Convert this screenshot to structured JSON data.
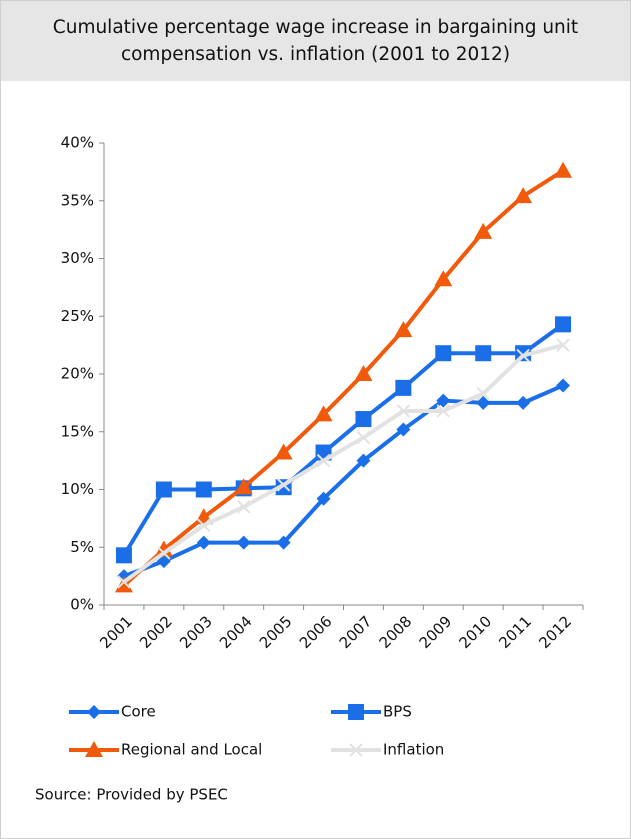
{
  "chart_data": {
    "type": "line",
    "title": "Cumulative percentage wage increase in bargaining unit compensation vs. inflation (2001 to 2012)",
    "categories": [
      "2001",
      "2002",
      "2003",
      "2004",
      "2005",
      "2006",
      "2007",
      "2008",
      "2009",
      "2010",
      "2011",
      "2012"
    ],
    "series": [
      {
        "name": "Core",
        "color": "#1a6fe8",
        "marker": "diamond",
        "values": [
          2.5,
          3.8,
          5.4,
          5.4,
          5.4,
          9.2,
          12.5,
          15.2,
          17.7,
          17.5,
          17.5,
          19.0
        ]
      },
      {
        "name": "BPS",
        "color": "#1a6fe8",
        "marker": "square",
        "values": [
          4.3,
          10.0,
          10.0,
          10.1,
          10.2,
          13.2,
          16.1,
          18.8,
          21.8,
          21.8,
          21.8,
          24.3
        ]
      },
      {
        "name": "Regional and Local",
        "color": "#f05a0a",
        "marker": "triangle",
        "values": [
          1.7,
          4.8,
          7.6,
          10.2,
          13.2,
          16.5,
          20.0,
          23.8,
          28.2,
          32.3,
          35.4,
          37.6
        ]
      },
      {
        "name": "Inflation",
        "color": "#e2e2e2",
        "marker": "x",
        "values": [
          2.0,
          4.5,
          6.9,
          8.5,
          10.4,
          12.5,
          14.5,
          16.8,
          16.8,
          18.3,
          21.6,
          22.5
        ]
      }
    ],
    "ylim": [
      0,
      40
    ],
    "yticks": [
      {
        "value": 0,
        "label": "0%"
      },
      {
        "value": 5,
        "label": "5%"
      },
      {
        "value": 10,
        "label": "10%"
      },
      {
        "value": 15,
        "label": "15%"
      },
      {
        "value": 20,
        "label": "20%"
      },
      {
        "value": 25,
        "label": "25%"
      },
      {
        "value": 30,
        "label": "30%"
      },
      {
        "value": 35,
        "label": "35%"
      },
      {
        "value": 40,
        "label": "40%"
      }
    ],
    "grid": false,
    "source": "Source: Provided by PSEC"
  }
}
